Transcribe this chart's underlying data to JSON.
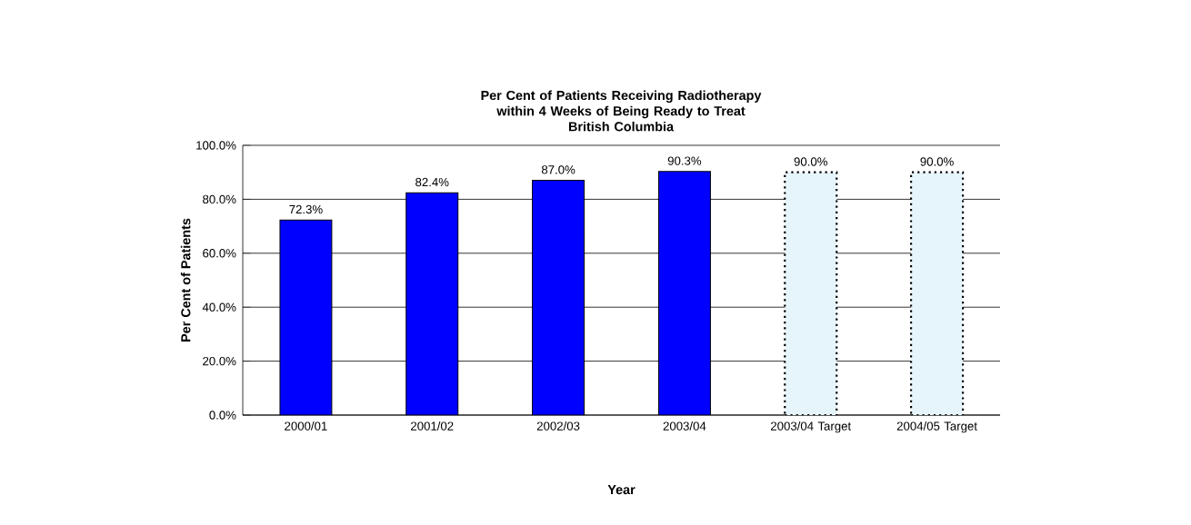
{
  "chart_data": {
    "type": "bar",
    "title": "Per Cent of Patients Receiving Radiotherapy within 4 Weeks of Being Ready to Treat",
    "subtitle": "British Columbia",
    "xlabel": "Year",
    "ylabel": "Per Cent of Patients",
    "categories": [
      "2000/01",
      "2001/02",
      "2002/03",
      "2003/04",
      "2003/04 Target",
      "2004/05 Target"
    ],
    "series": [
      {
        "color": "#0000ff",
        "values": [
          72.3,
          82.4,
          87.0,
          90.3,
          null,
          null
        ],
        "value_labels": [
          "72.3%",
          "82.4%",
          "87.0%",
          "90.3%",
          null,
          null
        ]
      },
      {
        "color": "#e6f5fc",
        "line_style": "dotted",
        "values": [
          null,
          null,
          null,
          null,
          90.0,
          90.0
        ],
        "value_labels": [
          null,
          null,
          null,
          null,
          "90.0%",
          "90.0%"
        ]
      }
    ],
    "ylim": [
      0,
      100
    ],
    "yticks": [
      {
        "value": 0,
        "label": "0.0%"
      },
      {
        "value": 20,
        "label": "20.0%"
      },
      {
        "value": 40,
        "label": "40.0%"
      },
      {
        "value": 60,
        "label": "60.0%"
      },
      {
        "value": 80,
        "label": "80.0%"
      },
      {
        "value": 100,
        "label": "100.0%"
      }
    ],
    "grid": "y"
  }
}
